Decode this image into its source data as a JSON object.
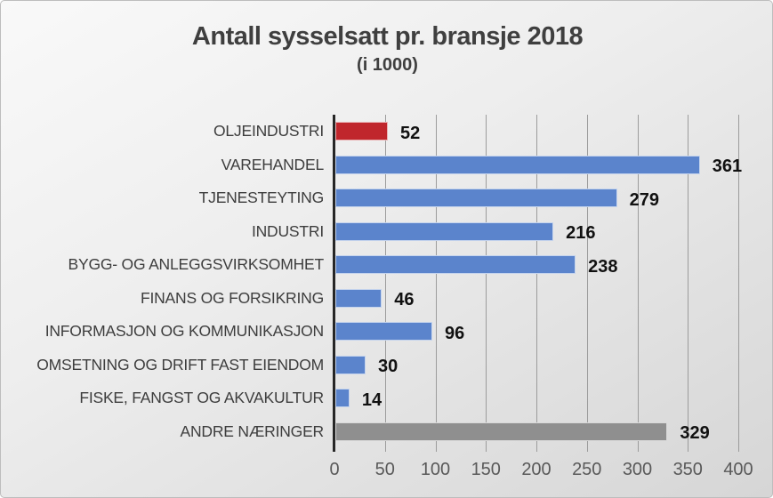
{
  "header": {
    "title": "Antall sysselsatt pr. bransje 2018",
    "subtitle": "(i 1000)"
  },
  "chart_data": {
    "type": "bar",
    "orientation": "horizontal",
    "title": "Antall sysselsatt pr. bransje 2018",
    "subtitle": "(i 1000)",
    "categories": [
      "OLJEINDUSTRI",
      "VAREHANDEL",
      "TJENESTEYTING",
      "INDUSTRI",
      "BYGG- OG ANLEGGSVIRKSOMHET",
      "FINANS OG FORSIKRING",
      "INFORMASJON OG KOMMUNIKASJON",
      "OMSETNING OG DRIFT FAST EIENDOM",
      "FISKE, FANGST OG AKVAKULTUR",
      "ANDRE NÆRINGER"
    ],
    "values": [
      52,
      361,
      279,
      216,
      238,
      46,
      96,
      30,
      14,
      329
    ],
    "bar_colors": [
      "#c0262c",
      "#5b84cc",
      "#5b84cc",
      "#5b84cc",
      "#5b84cc",
      "#5b84cc",
      "#5b84cc",
      "#5b84cc",
      "#5b84cc",
      "#8f8f8f"
    ],
    "data_labels": [
      "52",
      "361",
      "279",
      "216",
      "238",
      "46",
      "96",
      "30",
      "14",
      "329"
    ],
    "xlim": [
      0,
      400
    ],
    "x_ticks": [
      0,
      50,
      100,
      150,
      200,
      250,
      300,
      350,
      400
    ],
    "x_tick_labels": [
      "0",
      "50",
      "100",
      "150",
      "200",
      "250",
      "300",
      "350",
      "400"
    ],
    "grid": true,
    "legend": false
  },
  "colors": {
    "accent_red": "#c0262c",
    "accent_blue": "#5b84cc",
    "accent_gray": "#8f8f8f",
    "gridline": "#9c9c9c",
    "axis_line": "#262626",
    "category_text": "#3d3d3d",
    "tick_text": "#595959",
    "title_text": "#3f3f3f",
    "value_text": "#111111"
  }
}
